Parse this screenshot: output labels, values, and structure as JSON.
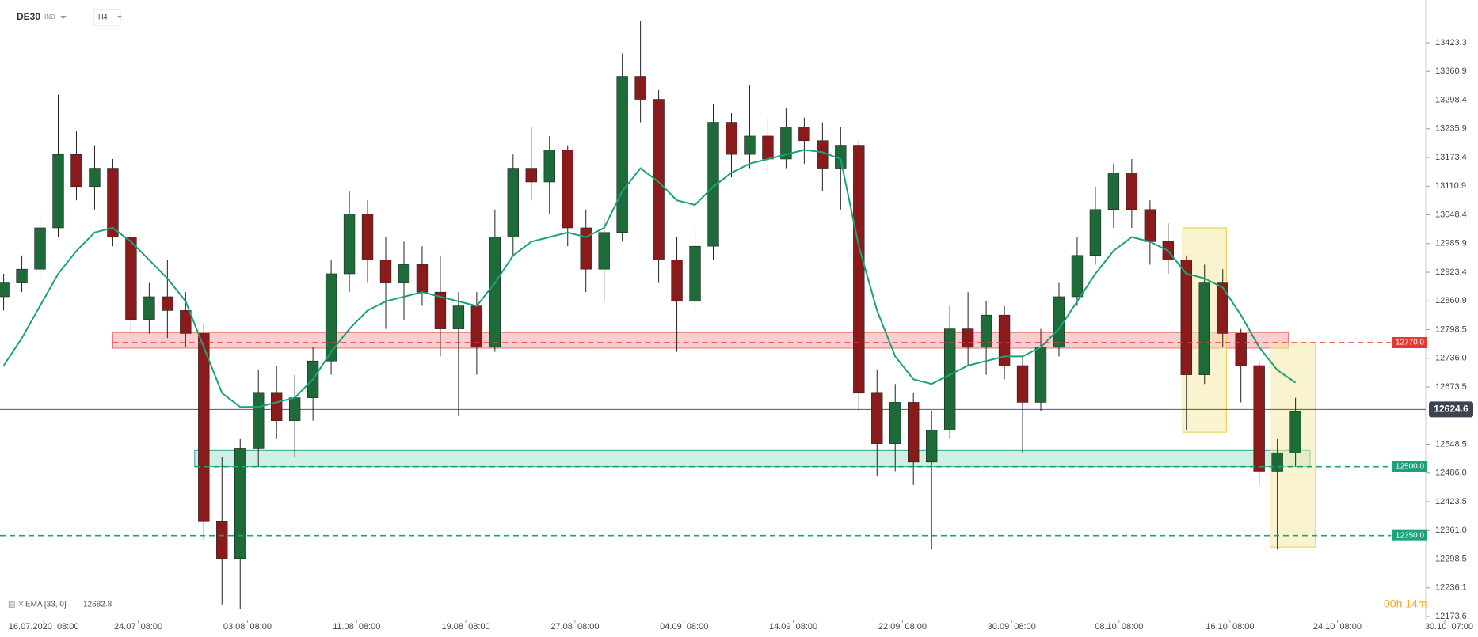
{
  "chart_data": {
    "type": "candlestick",
    "symbol": "DE30",
    "market": "IND",
    "interval": "H4",
    "countdown": "00h 14m",
    "indicator": {
      "name": "EMA [33, 0]",
      "value": 12682.8,
      "color": "#1aa37a"
    },
    "up_color": "#1e6b3a",
    "down_color": "#8b1a1a",
    "xlim": [
      -0.2,
      79.2
    ],
    "ylim": [
      12166.7,
      13516.4
    ],
    "xticks": [
      {
        "value": 2.2,
        "label": "16.07.2020  08:00"
      },
      {
        "value": 7.4,
        "label": "24.07  08:00"
      },
      {
        "value": 13.4,
        "label": "03.08  08:00"
      },
      {
        "value": 19.4,
        "label": "11.08  08:00"
      },
      {
        "value": 25.4,
        "label": "19.08  08:00"
      },
      {
        "value": 31.4,
        "label": "27.08  08:00"
      },
      {
        "value": 37.4,
        "label": "04.09  08:00"
      },
      {
        "value": 43.4,
        "label": "14.09  08:00"
      },
      {
        "value": 49.4,
        "label": "22.09  08:00"
      },
      {
        "value": 55.4,
        "label": "30.09  08:00"
      },
      {
        "value": 61.3,
        "label": "08.10  08:00"
      },
      {
        "value": 67.4,
        "label": "16.10  08:00"
      },
      {
        "value": 73.3,
        "label": "24.10  08:00"
      },
      {
        "value": 79.2,
        "label": "30.10  07:00"
      }
    ],
    "yticks": [
      13423.3,
      13360.9,
      13298.4,
      13235.9,
      13173.4,
      13110.9,
      13048.4,
      12985.9,
      12923.4,
      12860.9,
      12798.5,
      {
        "value": 12736.0,
        "label": "12736.0"
      },
      12673.5,
      12548.5,
      {
        "value": 12486.0,
        "label": "12486.0"
      },
      12423.5,
      {
        "value": 12361.0,
        "label": "12361.0"
      },
      12298.5,
      12236.1,
      12173.6
    ],
    "current_price": 12624.6,
    "levels": [
      {
        "value": 12770.0,
        "label": "12770.0",
        "color": "#e53935",
        "from": 6
      },
      {
        "value": 12500.0,
        "label": "12500.0",
        "color": "#1aa37a",
        "from": 10.5
      },
      {
        "value": 12350.0,
        "label": "12350.0",
        "color": "#1aa37a",
        "from": -0.2
      }
    ],
    "zones": [
      {
        "x": [
          6,
          70.6
        ],
        "y": [
          12758,
          12792
        ],
        "color": "#f4a6a6"
      },
      {
        "x": [
          10.5,
          71.8
        ],
        "y": [
          12500,
          12535
        ],
        "color": "#a8e6cf"
      },
      {
        "x": [
          64.8,
          67.2
        ],
        "y": [
          12575,
          13020
        ],
        "color": "#f6eaa8"
      },
      {
        "x": [
          69.6,
          72.1
        ],
        "y": [
          12325,
          12770
        ],
        "color": "#f6eaa8"
      }
    ],
    "ohlc": [
      [
        12870,
        12920,
        12840,
        12900
      ],
      [
        12900,
        12960,
        12880,
        12930
      ],
      [
        12930,
        13050,
        12910,
        13020
      ],
      [
        13020,
        13310,
        13000,
        13180
      ],
      [
        13180,
        13230,
        13080,
        13110
      ],
      [
        13110,
        13200,
        13060,
        13150
      ],
      [
        13150,
        13170,
        12980,
        13000
      ],
      [
        13000,
        13010,
        12790,
        12820
      ],
      [
        12820,
        12900,
        12790,
        12870
      ],
      [
        12870,
        12950,
        12780,
        12840
      ],
      [
        12840,
        12880,
        12760,
        12790
      ],
      [
        12790,
        12810,
        12340,
        12380
      ],
      [
        12380,
        12520,
        12200,
        12300
      ],
      [
        12300,
        12560,
        12190,
        12540
      ],
      [
        12540,
        12710,
        12500,
        12660
      ],
      [
        12660,
        12720,
        12560,
        12600
      ],
      [
        12600,
        12700,
        12520,
        12650
      ],
      [
        12650,
        12760,
        12600,
        12730
      ],
      [
        12730,
        12950,
        12700,
        12920
      ],
      [
        12920,
        13100,
        12880,
        13050
      ],
      [
        13050,
        13080,
        12900,
        12950
      ],
      [
        12950,
        13000,
        12800,
        12900
      ],
      [
        12900,
        12990,
        12820,
        12940
      ],
      [
        12940,
        12980,
        12850,
        12880
      ],
      [
        12880,
        12960,
        12740,
        12800
      ],
      [
        12800,
        12880,
        12610,
        12850
      ],
      [
        12850,
        12880,
        12700,
        12760
      ],
      [
        12760,
        13060,
        12750,
        13000
      ],
      [
        13000,
        13180,
        12960,
        13150
      ],
      [
        13150,
        13240,
        13080,
        13120
      ],
      [
        13120,
        13220,
        13050,
        13190
      ],
      [
        13190,
        13200,
        12980,
        13020
      ],
      [
        13020,
        13060,
        12880,
        12930
      ],
      [
        12930,
        13040,
        12860,
        13010
      ],
      [
        13010,
        13400,
        12990,
        13350
      ],
      [
        13350,
        13470,
        13250,
        13300
      ],
      [
        13300,
        13320,
        12900,
        12950
      ],
      [
        12950,
        13000,
        12750,
        12860
      ],
      [
        12860,
        13020,
        12840,
        12980
      ],
      [
        12980,
        13290,
        12950,
        13250
      ],
      [
        13250,
        13270,
        13130,
        13180
      ],
      [
        13180,
        13330,
        13150,
        13220
      ],
      [
        13220,
        13260,
        13140,
        13170
      ],
      [
        13170,
        13280,
        13150,
        13240
      ],
      [
        13240,
        13260,
        13160,
        13210
      ],
      [
        13210,
        13250,
        13100,
        13150
      ],
      [
        13150,
        13240,
        13060,
        13200
      ],
      [
        13200,
        13210,
        12620,
        12660
      ],
      [
        12660,
        12710,
        12480,
        12550
      ],
      [
        12550,
        12680,
        12490,
        12640
      ],
      [
        12640,
        12660,
        12460,
        12510
      ],
      [
        12510,
        12620,
        12320,
        12580
      ],
      [
        12580,
        12850,
        12560,
        12800
      ],
      [
        12800,
        12880,
        12720,
        12760
      ],
      [
        12760,
        12860,
        12700,
        12830
      ],
      [
        12830,
        12850,
        12690,
        12720
      ],
      [
        12720,
        12740,
        12530,
        12640
      ],
      [
        12640,
        12800,
        12620,
        12760
      ],
      [
        12760,
        12900,
        12740,
        12870
      ],
      [
        12870,
        13000,
        12850,
        12960
      ],
      [
        12960,
        13110,
        12940,
        13060
      ],
      [
        13060,
        13160,
        13020,
        13140
      ],
      [
        13140,
        13170,
        13020,
        13060
      ],
      [
        13060,
        13080,
        12940,
        12990
      ],
      [
        12990,
        13030,
        12920,
        12950
      ],
      [
        12950,
        12960,
        12580,
        12700
      ],
      [
        12700,
        12940,
        12680,
        12900
      ],
      [
        12900,
        12930,
        12760,
        12790
      ],
      [
        12790,
        12800,
        12640,
        12720
      ],
      [
        12720,
        12730,
        12460,
        12490
      ],
      [
        12490,
        12560,
        12320,
        12530
      ],
      [
        12530,
        12650,
        12500,
        12620
      ]
    ],
    "ema": [
      12720,
      12780,
      12850,
      12920,
      12970,
      13010,
      13020,
      12990,
      12950,
      12910,
      12860,
      12760,
      12660,
      12630,
      12630,
      12640,
      12650,
      12690,
      12750,
      12800,
      12840,
      12860,
      12870,
      12880,
      12870,
      12860,
      12850,
      12900,
      12960,
      12990,
      13000,
      13010,
      13000,
      13020,
      13100,
      13150,
      13120,
      13080,
      13070,
      13110,
      13140,
      13160,
      13170,
      13180,
      13190,
      13185,
      13170,
      12980,
      12840,
      12740,
      12690,
      12680,
      12700,
      12720,
      12730,
      12740,
      12740,
      12760,
      12800,
      12860,
      12920,
      12970,
      13000,
      12990,
      12970,
      12920,
      12910,
      12890,
      12830,
      12760,
      12710,
      12683
    ]
  }
}
